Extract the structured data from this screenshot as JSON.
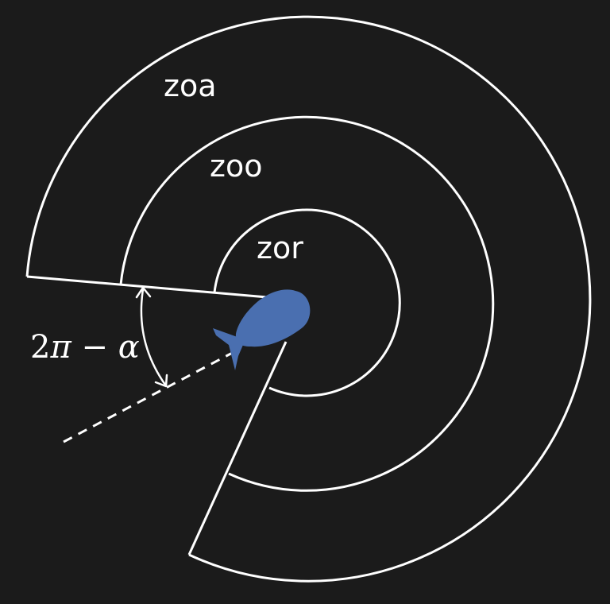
{
  "zones": {
    "outer_label": "zoa",
    "middle_label": "zoo",
    "inner_label": "zor"
  },
  "angle": {
    "prefix": "2",
    "pi": "π",
    "minus": " − ",
    "alpha": "α"
  },
  "colors": {
    "background": "#1b1b1b",
    "stroke": "#ffffff",
    "fish": "#4a6fb0"
  },
  "icons": {
    "fish": "fish-icon"
  }
}
